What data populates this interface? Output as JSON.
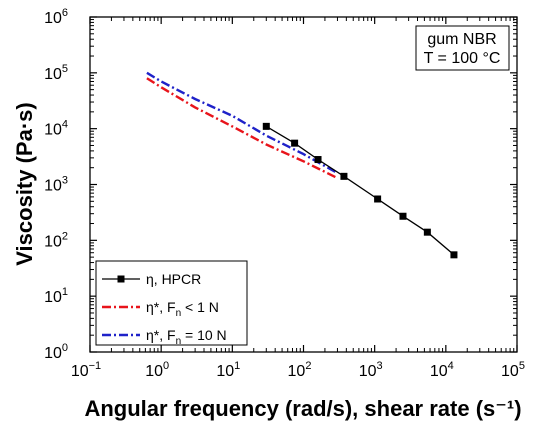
{
  "chart_data": {
    "type": "line",
    "xscale": "log",
    "yscale": "log",
    "xlim": [
      0.1,
      100000
    ],
    "ylim": [
      1,
      1000000
    ],
    "xlabel": "Angular frequency (rad/s), shear rate (s⁻¹)",
    "ylabel": "Viscosity (Pa·s)",
    "x_ticks": [
      {
        "value": 0.1,
        "base": "10",
        "exp": "−1"
      },
      {
        "value": 1,
        "base": "10",
        "exp": "0"
      },
      {
        "value": 10,
        "base": "10",
        "exp": "1"
      },
      {
        "value": 100,
        "base": "10",
        "exp": "2"
      },
      {
        "value": 1000,
        "base": "10",
        "exp": "3"
      },
      {
        "value": 10000,
        "base": "10",
        "exp": "4"
      },
      {
        "value": 100000,
        "base": "10",
        "exp": "5"
      }
    ],
    "y_ticks": [
      {
        "value": 1,
        "base": "10",
        "exp": "0"
      },
      {
        "value": 10,
        "base": "10",
        "exp": "1"
      },
      {
        "value": 100,
        "base": "10",
        "exp": "2"
      },
      {
        "value": 1000,
        "base": "10",
        "exp": "3"
      },
      {
        "value": 10000,
        "base": "10",
        "exp": "4"
      },
      {
        "value": 100000,
        "base": "10",
        "exp": "5"
      },
      {
        "value": 1000000,
        "base": "10",
        "exp": "6"
      }
    ],
    "annotation": [
      "gum NBR",
      "T = 100 °C"
    ],
    "grid": false,
    "legend_position": "bottom-left",
    "series": [
      {
        "legend": [
          {
            "t": "η, HPCR"
          }
        ],
        "color": "#000000",
        "style": "solid",
        "marker": "square",
        "x": [
          30,
          75,
          160,
          370,
          1100,
          2500,
          5500,
          13000
        ],
        "y": [
          11000,
          5500,
          2800,
          1400,
          550,
          270,
          140,
          55
        ]
      },
      {
        "legend": [
          {
            "t": "η*, F"
          },
          {
            "t": "n",
            "sub": true
          },
          {
            "t": " < 1 N"
          }
        ],
        "color": "#e8141b",
        "style": "dashdot",
        "marker": "none",
        "x": [
          0.63,
          1,
          3,
          10,
          30,
          100,
          300
        ],
        "y": [
          80000,
          55000,
          24000,
          11000,
          5200,
          2600,
          1300
        ]
      },
      {
        "legend": [
          {
            "t": "η*, F"
          },
          {
            "t": "n",
            "sub": true
          },
          {
            "t": " = 10 N"
          }
        ],
        "color": "#1f22c9",
        "style": "dashdot",
        "marker": "none",
        "x": [
          0.63,
          1,
          3,
          10,
          30,
          100,
          300
        ],
        "y": [
          100000,
          70000,
          34000,
          17000,
          7500,
          3500,
          1600
        ]
      }
    ]
  }
}
